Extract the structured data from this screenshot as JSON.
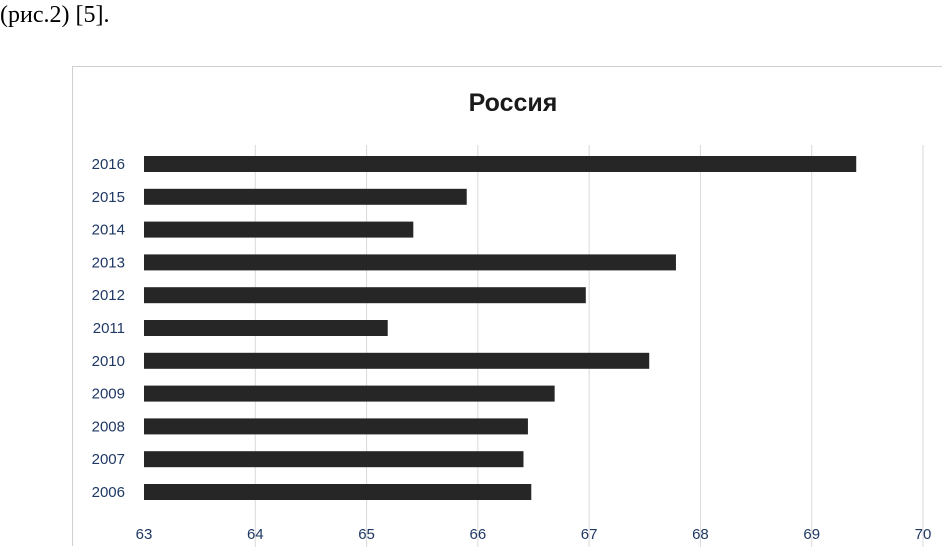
{
  "caption": "(рис.2) [5].",
  "chart_data": {
    "type": "bar",
    "orientation": "horizontal",
    "title": "Россия",
    "xlabel": "",
    "ylabel": "",
    "categories": [
      "2016",
      "2015",
      "2014",
      "2013",
      "2012",
      "2011",
      "2010",
      "2009",
      "2008",
      "2007",
      "2006"
    ],
    "values": [
      69.4,
      65.9,
      65.42,
      67.78,
      66.97,
      65.19,
      67.54,
      66.69,
      66.45,
      66.41,
      66.48
    ],
    "xlim": [
      63,
      70
    ],
    "xticks": [
      "63",
      "64",
      "65",
      "66",
      "67",
      "68",
      "69",
      "70"
    ],
    "grid": true,
    "bar_color": "#262626",
    "tick_color": "#1f3864"
  }
}
